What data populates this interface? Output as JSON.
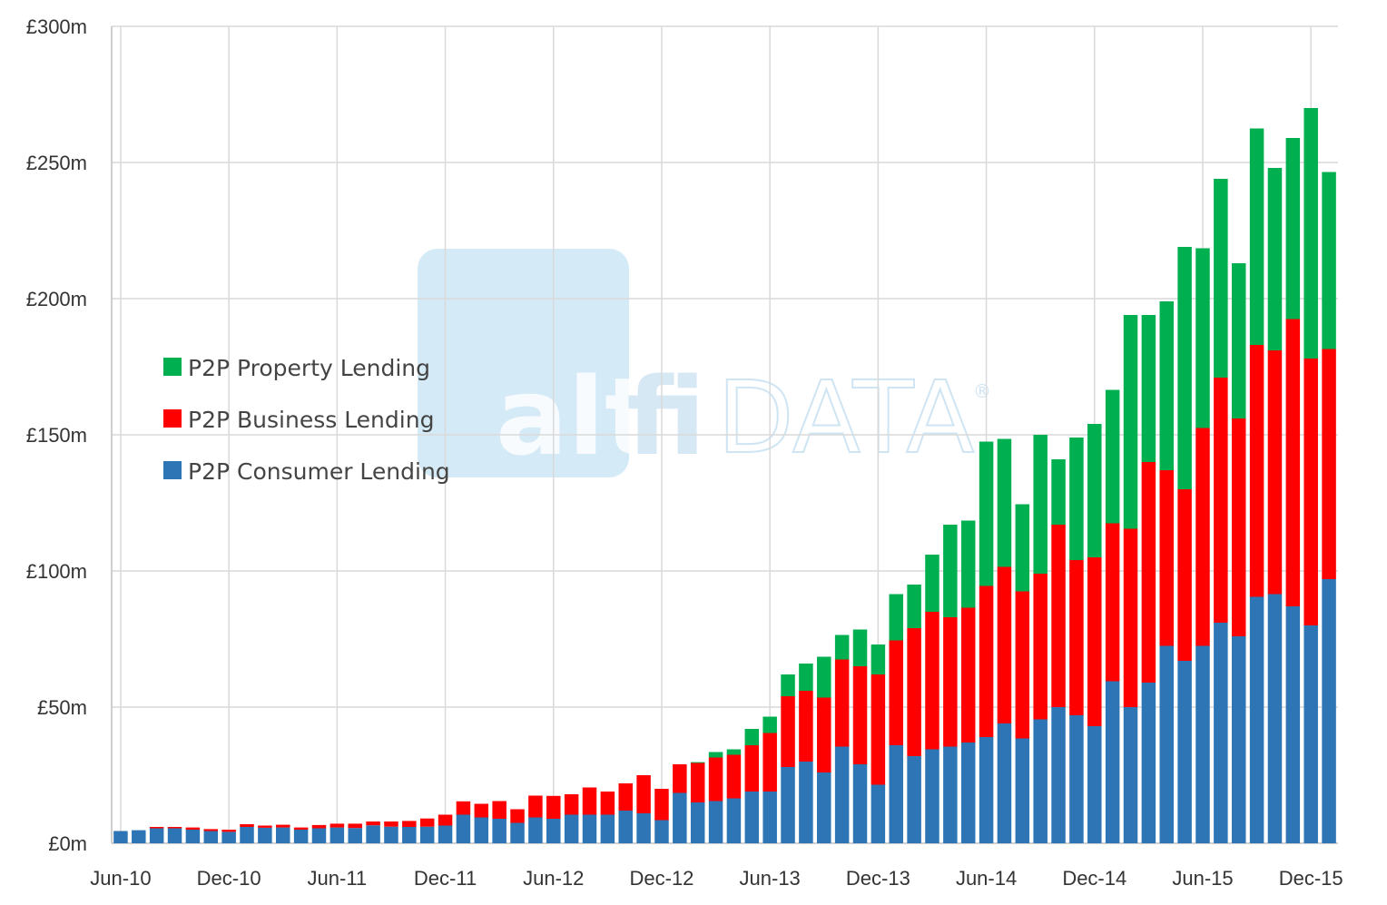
{
  "watermark": {
    "brand_part1": "alt",
    "brand_part2": "fi",
    "brand_part3": "DATA",
    "registered_mark": "®",
    "box_color": "#b9dcf1"
  },
  "colors": {
    "consumer": "#2e75b6",
    "business": "#ff0000",
    "property": "#00b050",
    "grid": "#d9d9d9",
    "axis": "#bfbfbf"
  },
  "chart_data": {
    "type": "bar",
    "stacked": true,
    "title": "",
    "xlabel": "",
    "ylabel": "",
    "ylim": [
      0,
      300
    ],
    "y_ticks": [
      "£0m",
      "£50m",
      "£100m",
      "£150m",
      "£200m",
      "£250m",
      "£300m"
    ],
    "x_tick_labels": [
      "Jun-10",
      "Dec-10",
      "Jun-11",
      "Dec-11",
      "Jun-12",
      "Dec-12",
      "Jun-13",
      "Dec-13",
      "Jun-14",
      "Dec-14",
      "Jun-15",
      "Dec-15"
    ],
    "grid": true,
    "legend_position": "left",
    "categories": [
      "Jun-10",
      "Jul-10",
      "Aug-10",
      "Sep-10",
      "Oct-10",
      "Nov-10",
      "Dec-10",
      "Jan-11",
      "Feb-11",
      "Mar-11",
      "Apr-11",
      "May-11",
      "Jun-11",
      "Jul-11",
      "Aug-11",
      "Sep-11",
      "Oct-11",
      "Nov-11",
      "Dec-11",
      "Jan-12",
      "Feb-12",
      "Mar-12",
      "Apr-12",
      "May-12",
      "Jun-12",
      "Jul-12",
      "Aug-12",
      "Sep-12",
      "Oct-12",
      "Nov-12",
      "Dec-12",
      "Jan-13",
      "Feb-13",
      "Mar-13",
      "Apr-13",
      "May-13",
      "Jun-13",
      "Jul-13",
      "Aug-13",
      "Sep-13",
      "Oct-13",
      "Nov-13",
      "Dec-13",
      "Jan-14",
      "Feb-14",
      "Mar-14",
      "Apr-14",
      "May-14",
      "Jun-14",
      "Jul-14",
      "Aug-14",
      "Sep-14",
      "Oct-14",
      "Nov-14",
      "Dec-14",
      "Jan-15",
      "Feb-15",
      "Mar-15",
      "Apr-15",
      "May-15",
      "Jun-15",
      "Jul-15",
      "Aug-15",
      "Sep-15",
      "Oct-15",
      "Nov-15",
      "Dec-15",
      "Jan-16"
    ],
    "series": [
      {
        "name": "P2P Consumer Lending",
        "values": [
          4.5,
          4.8,
          5.5,
          5.5,
          5,
          4.5,
          4.2,
          6,
          5.7,
          5.8,
          5,
          5.5,
          5.8,
          5.6,
          6.6,
          6.1,
          6,
          6.1,
          6.5,
          10.5,
          9.5,
          9,
          7.5,
          9.5,
          9,
          10.5,
          10.5,
          10.5,
          12,
          11,
          8.5,
          18.5,
          15,
          15.5,
          16.5,
          19,
          19,
          28,
          30,
          26,
          35.5,
          29,
          21.5,
          36,
          32,
          34.5,
          35.5,
          37,
          39,
          44,
          38.5,
          45.5,
          50,
          47,
          43,
          59.5,
          50,
          59,
          72.5,
          67,
          72.5,
          81,
          76,
          90.5,
          91.5,
          87,
          80,
          97
        ]
      },
      {
        "name": "P2P Business Lending",
        "values": [
          0,
          0,
          0.5,
          0.5,
          0.8,
          0.7,
          0.8,
          1,
          0.8,
          1,
          0.8,
          1.2,
          1.4,
          1.6,
          1.4,
          1.9,
          2.2,
          3,
          4,
          4.9,
          5,
          6.5,
          5,
          8,
          8.4,
          7.5,
          10,
          8.5,
          10,
          14,
          11.5,
          10.5,
          14.5,
          16,
          16,
          17,
          21.5,
          26,
          26,
          27.5,
          32,
          36,
          40.5,
          38.5,
          47,
          50.5,
          47.5,
          49.5,
          55.5,
          57.5,
          54,
          53.5,
          67,
          57,
          62,
          58,
          65.5,
          81,
          64.5,
          63,
          80,
          90,
          80,
          92.5,
          89.5,
          105.5,
          98,
          84.5
        ]
      },
      {
        "name": "P2P Property Lending",
        "values": [
          0,
          0,
          0,
          0,
          0,
          0,
          0,
          0,
          0,
          0,
          0,
          0,
          0,
          0,
          0,
          0,
          0,
          0,
          0,
          0,
          0,
          0,
          0,
          0,
          0,
          0,
          0,
          0,
          0,
          0,
          0,
          0,
          0.3,
          2,
          2,
          6,
          6,
          8,
          10,
          15,
          9,
          13.5,
          11,
          17,
          16,
          21,
          34,
          32,
          53,
          47,
          32,
          51,
          24,
          45,
          49,
          49,
          78.5,
          54,
          62,
          89,
          66,
          73,
          57,
          79.5,
          67,
          66.5,
          92,
          65
        ]
      }
    ]
  }
}
